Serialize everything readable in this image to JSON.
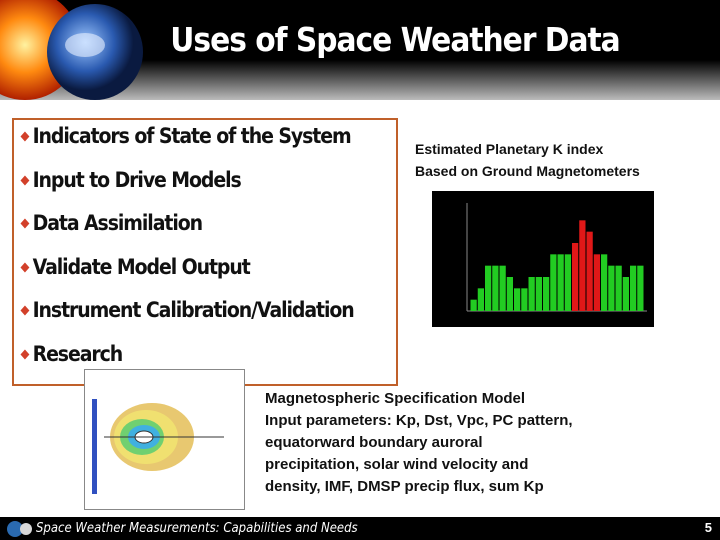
{
  "header": {
    "title": "Uses of Space Weather Data"
  },
  "bullets": [
    "Indicators of State of the System",
    "Input to Drive Models",
    "Data Assimilation",
    "Validate Model Output",
    "Instrument Calibration/Validation",
    "Research"
  ],
  "kp_caption": [
    "Estimated Planetary K index",
    "Based on Ground Magnetometers"
  ],
  "kp_plot": {
    "ylim": [
      0,
      9
    ],
    "values": [
      1,
      2,
      4,
      4,
      4,
      3,
      2,
      2,
      3,
      3,
      3,
      5,
      5,
      5,
      6,
      8,
      7,
      5,
      5,
      4,
      4,
      3,
      4,
      4
    ],
    "colors": [
      "#22cc22",
      "#22cc22",
      "#22cc22",
      "#22cc22",
      "#22cc22",
      "#22cc22",
      "#22cc22",
      "#22cc22",
      "#22cc22",
      "#22cc22",
      "#22cc22",
      "#22cc22",
      "#22cc22",
      "#22cc22",
      "#e01818",
      "#e01818",
      "#e01818",
      "#e01818",
      "#22cc22",
      "#22cc22",
      "#22cc22",
      "#22cc22",
      "#22cc22",
      "#22cc22"
    ]
  },
  "msm_caption": [
    "Magnetospheric Specification Model",
    "Input parameters: Kp, Dst, Vpc, PC pattern,",
    "equatorward boundary auroral",
    "precipitation,  solar wind velocity and",
    "density, IMF, DMSP precip flux, sum Kp"
  ],
  "footer": {
    "text": "Space Weather Measurements: Capabilities and Needs",
    "page": "5"
  }
}
